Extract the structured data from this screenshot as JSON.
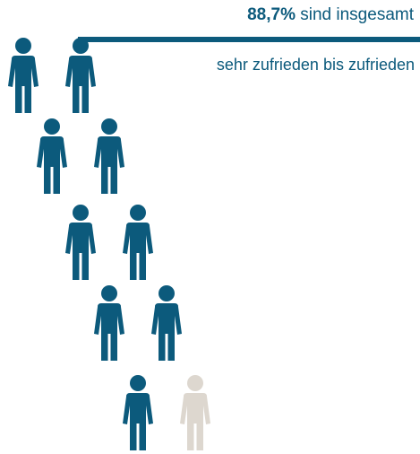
{
  "header": {
    "percent": "88,7%",
    "line1_rest": " sind insgesamt",
    "line2": "sehr zufrieden bis zufrieden"
  },
  "chart_data": {
    "type": "pictogram",
    "value_percent": 88.7,
    "total_icons": 10,
    "filled_icons": 9,
    "colors": {
      "filled": "#0c5a7c",
      "empty": "#ddd7cf",
      "text": "#0c5a7c"
    }
  }
}
